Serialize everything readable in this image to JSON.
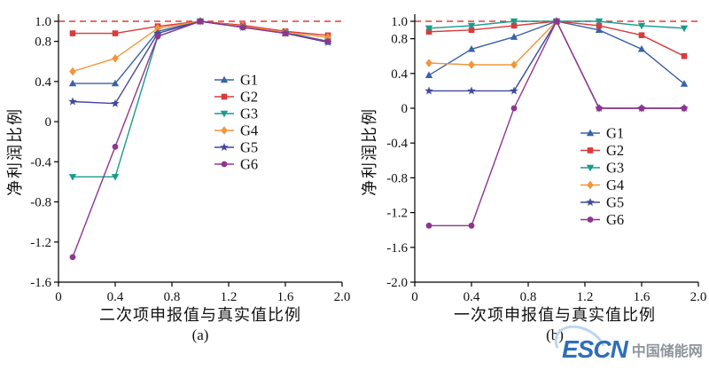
{
  "figure": {
    "background": "#ffffff"
  },
  "watermark": {
    "logo_text": "ESCN",
    "site_name": "中国储能网",
    "logo_color": "#2e6fb7",
    "site_color": "#8d949b"
  },
  "chart_data": [
    {
      "type": "line",
      "subtitle": "(a)",
      "xlabel": "二次项申报值与真实值比例",
      "ylabel": "净利润比例",
      "xlim": [
        0,
        2.0
      ],
      "ylim": [
        -1.6,
        1.0
      ],
      "xticks": [
        {
          "v": 0,
          "label": "0"
        },
        {
          "v": 0.4,
          "label": "0.4"
        },
        {
          "v": 0.8,
          "label": "0.8"
        },
        {
          "v": 1.2,
          "label": "1.2"
        },
        {
          "v": 1.6,
          "label": "1.6"
        },
        {
          "v": 2.0,
          "label": "2.0"
        }
      ],
      "yticks": [
        {
          "v": 1.0,
          "label": "1.0"
        },
        {
          "v": 0.8,
          "label": "0.8"
        },
        {
          "v": 0.4,
          "label": "0.4"
        },
        {
          "v": 0,
          "label": "0"
        },
        {
          "v": -0.4,
          "label": "-0.4"
        },
        {
          "v": -0.8,
          "label": "-0.8"
        },
        {
          "v": -1.2,
          "label": "-1.2"
        },
        {
          "v": -1.6,
          "label": "-1.6"
        }
      ],
      "ref_line": {
        "y": 1.0,
        "color": "#e23b3b",
        "style": "dashed"
      },
      "grid": false,
      "legend_position": "center-right-inside",
      "x": [
        0.1,
        0.4,
        0.7,
        1.0,
        1.3,
        1.6,
        1.9
      ],
      "series": [
        {
          "name": "G1",
          "color": "#3a62a8",
          "marker": "triangle-up",
          "values": [
            0.38,
            0.38,
            0.9,
            1.0,
            0.95,
            0.88,
            0.8
          ]
        },
        {
          "name": "G2",
          "color": "#d83b3b",
          "marker": "square",
          "values": [
            0.88,
            0.88,
            0.95,
            1.0,
            0.96,
            0.9,
            0.86
          ]
        },
        {
          "name": "G3",
          "color": "#189c8c",
          "marker": "triangle-down",
          "values": [
            -0.55,
            -0.55,
            0.85,
            1.0,
            0.94,
            0.89,
            0.8
          ]
        },
        {
          "name": "G4",
          "color": "#f2953a",
          "marker": "diamond",
          "values": [
            0.5,
            0.63,
            0.93,
            1.0,
            0.95,
            0.89,
            0.84
          ]
        },
        {
          "name": "G5",
          "color": "#41499e",
          "marker": "star",
          "values": [
            0.2,
            0.18,
            0.88,
            1.0,
            0.94,
            0.88,
            0.79
          ]
        },
        {
          "name": "G6",
          "color": "#8e3590",
          "marker": "circle",
          "values": [
            -1.35,
            -0.25,
            0.85,
            1.0,
            0.94,
            0.88,
            0.8
          ]
        }
      ]
    },
    {
      "type": "line",
      "subtitle": "(b)",
      "xlabel": "一次项申报值与真实值比例",
      "ylabel": "净利润比例",
      "xlim": [
        0,
        2.0
      ],
      "ylim": [
        -2.0,
        1.0
      ],
      "xticks": [
        {
          "v": 0,
          "label": "0"
        },
        {
          "v": 0.4,
          "label": "0.4"
        },
        {
          "v": 0.8,
          "label": "0.8"
        },
        {
          "v": 1.2,
          "label": "1.2"
        },
        {
          "v": 1.6,
          "label": "1.6"
        },
        {
          "v": 2.0,
          "label": "2.0"
        }
      ],
      "yticks": [
        {
          "v": 1.0,
          "label": "1.0"
        },
        {
          "v": 0.8,
          "label": "0.8"
        },
        {
          "v": 0.4,
          "label": "0.4"
        },
        {
          "v": 0,
          "label": "0"
        },
        {
          "v": -0.4,
          "label": "-0.4"
        },
        {
          "v": -0.8,
          "label": "-0.8"
        },
        {
          "v": -1.2,
          "label": "-1.2"
        },
        {
          "v": -1.6,
          "label": "-1.6"
        },
        {
          "v": -2.0,
          "label": "-2.0"
        }
      ],
      "ref_line": {
        "y": 1.0,
        "color": "#e23b3b",
        "style": "dashed"
      },
      "grid": false,
      "legend_position": "lower-right-inside",
      "x": [
        0.1,
        0.4,
        0.7,
        1.0,
        1.3,
        1.6,
        1.9
      ],
      "series": [
        {
          "name": "G1",
          "color": "#3a62a8",
          "marker": "triangle-up",
          "values": [
            0.38,
            0.68,
            0.82,
            1.0,
            0.9,
            0.68,
            0.28
          ]
        },
        {
          "name": "G2",
          "color": "#d83b3b",
          "marker": "square",
          "values": [
            0.88,
            0.9,
            0.95,
            1.0,
            0.95,
            0.84,
            0.6
          ]
        },
        {
          "name": "G3",
          "color": "#189c8c",
          "marker": "triangle-down",
          "values": [
            0.92,
            0.95,
            1.0,
            1.0,
            1.0,
            0.95,
            0.92
          ]
        },
        {
          "name": "G4",
          "color": "#f2953a",
          "marker": "diamond",
          "values": [
            0.52,
            0.5,
            0.5,
            1.0,
            0.0,
            0.0,
            0.0
          ]
        },
        {
          "name": "G5",
          "color": "#41499e",
          "marker": "star",
          "values": [
            0.2,
            0.2,
            0.2,
            1.0,
            0.0,
            0.0,
            0.0
          ]
        },
        {
          "name": "G6",
          "color": "#8e3590",
          "marker": "circle",
          "values": [
            -1.35,
            -1.35,
            0.0,
            1.0,
            0.0,
            0.0,
            0.0
          ]
        }
      ]
    }
  ]
}
